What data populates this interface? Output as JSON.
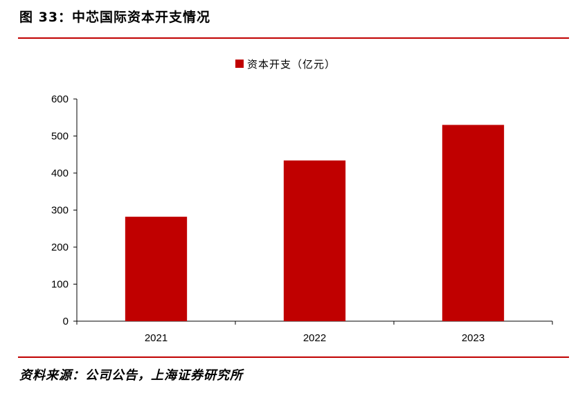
{
  "header": {
    "title": "图 33：中芯国际资本开支情况"
  },
  "footer": {
    "source": "资料来源：公司公告，上海证券研究所"
  },
  "colors": {
    "accent": "#c00000",
    "bar": "#c00000"
  },
  "chart_data": {
    "type": "bar",
    "categories": [
      "2021",
      "2022",
      "2023"
    ],
    "series": [
      {
        "name": "资本开支（亿元）",
        "values": [
          282,
          434,
          530
        ]
      }
    ],
    "ylim": [
      0,
      600
    ],
    "yticks": [
      0,
      100,
      200,
      300,
      400,
      500,
      600
    ],
    "legend_position": "top-center",
    "grid": false
  }
}
